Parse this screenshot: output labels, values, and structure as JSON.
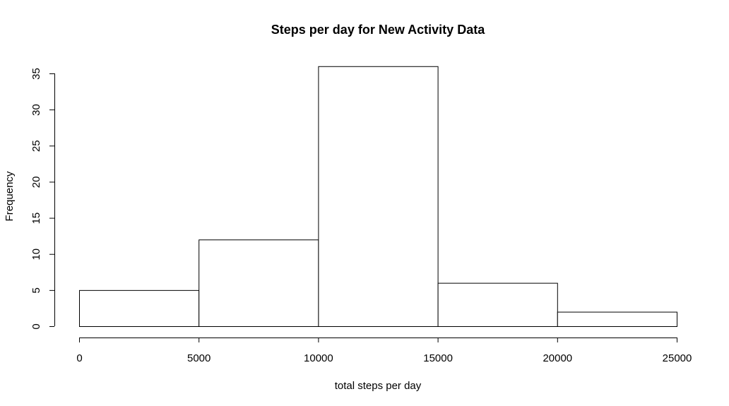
{
  "chart_data": {
    "type": "bar",
    "title": "Steps per day for New Activity Data",
    "xlabel": "total steps per day",
    "ylabel": "Frequency",
    "bins": [
      {
        "from": 0,
        "to": 5000,
        "count": 5
      },
      {
        "from": 5000,
        "to": 10000,
        "count": 12
      },
      {
        "from": 10000,
        "to": 15000,
        "count": 36
      },
      {
        "from": 15000,
        "to": 20000,
        "count": 6
      },
      {
        "from": 20000,
        "to": 25000,
        "count": 2
      }
    ],
    "xlim": [
      0,
      25000
    ],
    "ylim": [
      0,
      35
    ],
    "x_ticks": [
      "0",
      "5000",
      "10000",
      "15000",
      "20000",
      "25000"
    ],
    "y_ticks": [
      "0",
      "5",
      "10",
      "15",
      "20",
      "25",
      "30",
      "35"
    ],
    "grid": false,
    "bar_fill": "#ffffff",
    "bar_stroke": "#000000"
  }
}
